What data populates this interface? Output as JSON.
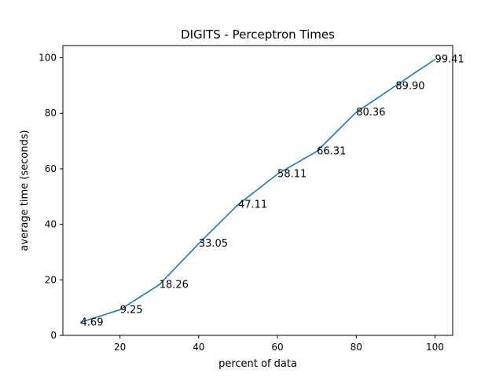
{
  "chart_data": {
    "type": "line",
    "title": "DIGITS - Perceptron Times",
    "xlabel": "percent of data",
    "ylabel": "average time (seconds)",
    "xlim": [
      5.5,
      104.5
    ],
    "ylim": [
      0,
      104.4
    ],
    "xticks": [
      20,
      40,
      60,
      80,
      100
    ],
    "yticks": [
      0,
      20,
      40,
      60,
      80,
      100
    ],
    "grid": false,
    "x": [
      10,
      20,
      30,
      40,
      50,
      60,
      70,
      80,
      90,
      100
    ],
    "series": [
      {
        "values": [
          4.69,
          9.25,
          18.26,
          33.05,
          47.11,
          58.11,
          66.31,
          80.36,
          89.9,
          99.41
        ],
        "labels": [
          "4.69",
          "9.25",
          "18.26",
          "33.05",
          "47.11",
          "58.11",
          "66.31",
          "80.36",
          "89.90",
          "99.41"
        ],
        "color": "#1f77b4"
      }
    ]
  }
}
